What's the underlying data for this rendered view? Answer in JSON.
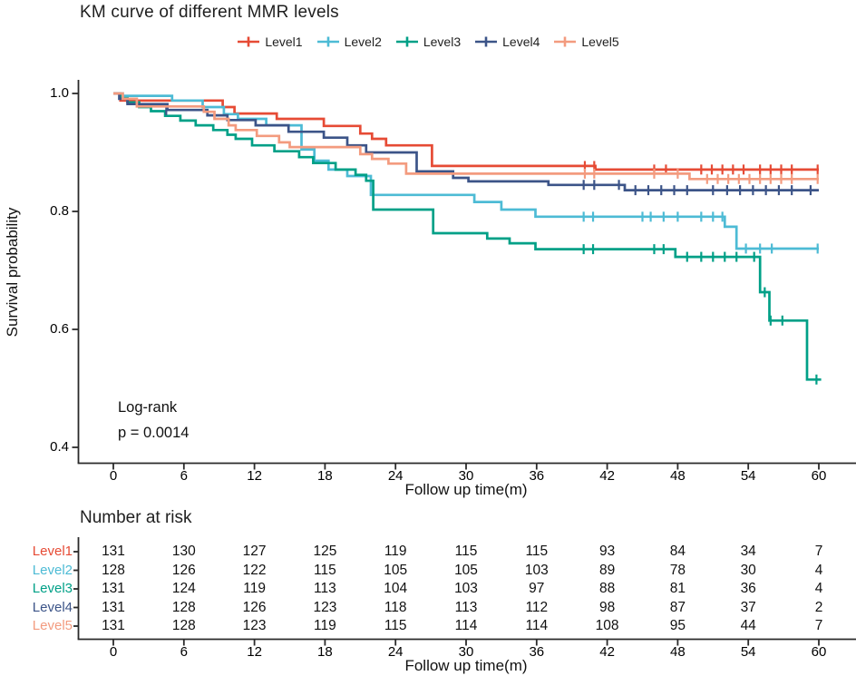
{
  "page_title": "KM curve of different MMR levels",
  "legend": {
    "items": [
      {
        "label": "Level1",
        "color": "#E64B35"
      },
      {
        "label": "Level2",
        "color": "#4DBBD5"
      },
      {
        "label": "Level3",
        "color": "#00A087"
      },
      {
        "label": "Level4",
        "color": "#3C5488"
      },
      {
        "label": "Level5",
        "color": "#F39B7F"
      }
    ]
  },
  "plot": {
    "y_axis_label": "Survival probability",
    "x_axis_label": "Follow up time(m)",
    "y_ticks": [
      "1.0",
      "0.8",
      "0.6",
      "0.4"
    ],
    "y_tick_values": [
      1.0,
      0.8,
      0.6,
      0.4
    ],
    "x_ticks": [
      0,
      6,
      12,
      18,
      24,
      30,
      36,
      42,
      48,
      54,
      60
    ],
    "annotation": {
      "line1": "Log-rank",
      "line2": "p = 0.0014"
    }
  },
  "risk_table": {
    "title": "Number at risk",
    "x_axis_label": "Follow up time(m)",
    "x_ticks": [
      0,
      6,
      12,
      18,
      24,
      30,
      36,
      42,
      48,
      54,
      60
    ],
    "rows": [
      {
        "label": "Level1",
        "color": "#E64B35",
        "counts": [
          131,
          130,
          127,
          125,
          119,
          115,
          115,
          93,
          84,
          34,
          7
        ]
      },
      {
        "label": "Level2",
        "color": "#4DBBD5",
        "counts": [
          128,
          126,
          122,
          115,
          105,
          105,
          103,
          89,
          78,
          30,
          4
        ]
      },
      {
        "label": "Level3",
        "color": "#00A087",
        "counts": [
          131,
          124,
          119,
          113,
          104,
          103,
          97,
          88,
          81,
          36,
          4
        ]
      },
      {
        "label": "Level4",
        "color": "#3C5488",
        "counts": [
          131,
          128,
          126,
          123,
          118,
          113,
          112,
          98,
          87,
          37,
          2
        ]
      },
      {
        "label": "Level5",
        "color": "#F39B7F",
        "counts": [
          131,
          128,
          123,
          119,
          115,
          114,
          114,
          108,
          95,
          44,
          7
        ]
      }
    ]
  },
  "chart_data": {
    "type": "line",
    "subtype": "kaplan-meier-step",
    "title": "KM curve of different MMR levels",
    "xlabel": "Follow up time(m)",
    "ylabel": "Survival probability",
    "xlim": [
      0,
      60
    ],
    "ylim": [
      0.4,
      1.0
    ],
    "x_ticks": [
      0,
      6,
      12,
      18,
      24,
      30,
      36,
      42,
      48,
      54,
      60
    ],
    "y_ticks": [
      1.0,
      0.8,
      0.6,
      0.4
    ],
    "grid": false,
    "legend_position": "top",
    "logrank_label": "Log-rank",
    "logrank_p": "p = 0.0014",
    "series": [
      {
        "name": "Level1",
        "color": "#E64B35",
        "points": [
          [
            0,
            1.0
          ],
          [
            0.6,
            0.988
          ],
          [
            9.3,
            0.977
          ],
          [
            10.3,
            0.966
          ],
          [
            13.9,
            0.957
          ],
          [
            17.9,
            0.945
          ],
          [
            21,
            0.932
          ],
          [
            22,
            0.923
          ],
          [
            23.2,
            0.912
          ],
          [
            27.1,
            0.877
          ],
          [
            41,
            0.871
          ],
          [
            60,
            0.871
          ]
        ],
        "censor_marks": [
          [
            40.1,
            0.877
          ],
          [
            40.9,
            0.877
          ],
          [
            46,
            0.871
          ],
          [
            47,
            0.871
          ],
          [
            50,
            0.871
          ],
          [
            50.9,
            0.871
          ],
          [
            51.8,
            0.871
          ],
          [
            52.7,
            0.871
          ],
          [
            53.6,
            0.871
          ],
          [
            55,
            0.871
          ],
          [
            55.9,
            0.871
          ],
          [
            56.8,
            0.871
          ],
          [
            57.7,
            0.871
          ],
          [
            59.9,
            0.871
          ]
        ]
      },
      {
        "name": "Level2",
        "color": "#4DBBD5",
        "points": [
          [
            0,
            1.0
          ],
          [
            0.8,
            0.996
          ],
          [
            5,
            0.988
          ],
          [
            7.6,
            0.977
          ],
          [
            9.4,
            0.965
          ],
          [
            10.6,
            0.957
          ],
          [
            13,
            0.946
          ],
          [
            16,
            0.905
          ],
          [
            17.1,
            0.886
          ],
          [
            18.3,
            0.871
          ],
          [
            19.9,
            0.86
          ],
          [
            21.9,
            0.828
          ],
          [
            30.7,
            0.816
          ],
          [
            33,
            0.803
          ],
          [
            35.9,
            0.791
          ],
          [
            52,
            0.774
          ],
          [
            53,
            0.737
          ],
          [
            60,
            0.737
          ]
        ],
        "censor_marks": [
          [
            40,
            0.791
          ],
          [
            40.8,
            0.791
          ],
          [
            45,
            0.791
          ],
          [
            45.7,
            0.791
          ],
          [
            46.8,
            0.791
          ],
          [
            48,
            0.791
          ],
          [
            50,
            0.791
          ],
          [
            51,
            0.791
          ],
          [
            51.8,
            0.791
          ],
          [
            53.8,
            0.737
          ],
          [
            55,
            0.737
          ],
          [
            56,
            0.737
          ],
          [
            59.9,
            0.737
          ]
        ]
      },
      {
        "name": "Level3",
        "color": "#00A087",
        "points": [
          [
            0,
            1.0
          ],
          [
            0.6,
            0.992
          ],
          [
            1.2,
            0.985
          ],
          [
            2.2,
            0.977
          ],
          [
            3.2,
            0.97
          ],
          [
            4.4,
            0.962
          ],
          [
            5.7,
            0.954
          ],
          [
            7,
            0.946
          ],
          [
            8.5,
            0.938
          ],
          [
            9.7,
            0.93
          ],
          [
            10.4,
            0.923
          ],
          [
            11.8,
            0.912
          ],
          [
            13.7,
            0.902
          ],
          [
            15.8,
            0.892
          ],
          [
            17,
            0.882
          ],
          [
            18.9,
            0.871
          ],
          [
            20.6,
            0.862
          ],
          [
            21.5,
            0.852
          ],
          [
            22.1,
            0.803
          ],
          [
            27.2,
            0.763
          ],
          [
            31.8,
            0.754
          ],
          [
            33.7,
            0.746
          ],
          [
            35.9,
            0.736
          ],
          [
            47.8,
            0.723
          ],
          [
            55,
            0.663
          ],
          [
            55.8,
            0.615
          ],
          [
            59,
            0.515
          ],
          [
            60.2,
            0.515
          ]
        ],
        "censor_marks": [
          [
            40,
            0.736
          ],
          [
            40.8,
            0.736
          ],
          [
            46,
            0.736
          ],
          [
            46.8,
            0.736
          ],
          [
            48.8,
            0.723
          ],
          [
            50,
            0.723
          ],
          [
            51,
            0.723
          ],
          [
            52,
            0.723
          ],
          [
            53,
            0.723
          ],
          [
            54.5,
            0.723
          ],
          [
            55.4,
            0.663
          ],
          [
            55.9,
            0.615
          ],
          [
            56.9,
            0.615
          ],
          [
            59.8,
            0.515
          ]
        ]
      },
      {
        "name": "Level4",
        "color": "#3C5488",
        "points": [
          [
            0,
            1.0
          ],
          [
            0.5,
            0.991
          ],
          [
            1.2,
            0.982
          ],
          [
            4.6,
            0.972
          ],
          [
            8,
            0.963
          ],
          [
            9.7,
            0.955
          ],
          [
            12.1,
            0.946
          ],
          [
            14.9,
            0.935
          ],
          [
            17.9,
            0.925
          ],
          [
            19.9,
            0.912
          ],
          [
            21.5,
            0.9
          ],
          [
            25.8,
            0.868
          ],
          [
            28.9,
            0.857
          ],
          [
            30.2,
            0.851
          ],
          [
            37,
            0.845
          ],
          [
            43.5,
            0.836
          ],
          [
            60,
            0.836
          ]
        ],
        "censor_marks": [
          [
            4.5,
            0.972
          ],
          [
            40,
            0.845
          ],
          [
            40.9,
            0.845
          ],
          [
            43,
            0.845
          ],
          [
            44.4,
            0.836
          ],
          [
            45.5,
            0.836
          ],
          [
            46.6,
            0.836
          ],
          [
            47.7,
            0.836
          ],
          [
            48.8,
            0.836
          ],
          [
            51,
            0.836
          ],
          [
            52.2,
            0.836
          ],
          [
            53.3,
            0.836
          ],
          [
            54.4,
            0.836
          ],
          [
            55.5,
            0.836
          ],
          [
            56.6,
            0.836
          ],
          [
            57.7,
            0.836
          ],
          [
            59.3,
            0.836
          ]
        ]
      },
      {
        "name": "Level5",
        "color": "#F39B7F",
        "points": [
          [
            0,
            1.0
          ],
          [
            0.8,
            0.991
          ],
          [
            2,
            0.978
          ],
          [
            7.7,
            0.969
          ],
          [
            8.6,
            0.957
          ],
          [
            9.8,
            0.946
          ],
          [
            10.4,
            0.938
          ],
          [
            12.2,
            0.928
          ],
          [
            14.1,
            0.917
          ],
          [
            15,
            0.909
          ],
          [
            21,
            0.897
          ],
          [
            22,
            0.889
          ],
          [
            23.4,
            0.881
          ],
          [
            24.9,
            0.864
          ],
          [
            49,
            0.855
          ],
          [
            60,
            0.855
          ]
        ],
        "censor_marks": [
          [
            40.1,
            0.864
          ],
          [
            40.9,
            0.864
          ],
          [
            46,
            0.864
          ],
          [
            48,
            0.864
          ],
          [
            50.5,
            0.855
          ],
          [
            51.4,
            0.855
          ],
          [
            52.3,
            0.855
          ],
          [
            53.2,
            0.855
          ],
          [
            54.1,
            0.855
          ],
          [
            55,
            0.855
          ],
          [
            55.9,
            0.855
          ],
          [
            56.8,
            0.855
          ],
          [
            57.7,
            0.855
          ],
          [
            59.9,
            0.855
          ]
        ]
      }
    ],
    "risk_table": {
      "title": "Number at risk",
      "times": [
        0,
        6,
        12,
        18,
        24,
        30,
        36,
        42,
        48,
        54,
        60
      ],
      "rows": [
        {
          "name": "Level1",
          "counts": [
            131,
            130,
            127,
            125,
            119,
            115,
            115,
            93,
            84,
            34,
            7
          ]
        },
        {
          "name": "Level2",
          "counts": [
            128,
            126,
            122,
            115,
            105,
            105,
            103,
            89,
            78,
            30,
            4
          ]
        },
        {
          "name": "Level3",
          "counts": [
            131,
            124,
            119,
            113,
            104,
            103,
            97,
            88,
            81,
            36,
            4
          ]
        },
        {
          "name": "Level4",
          "counts": [
            131,
            128,
            126,
            123,
            118,
            113,
            112,
            98,
            87,
            37,
            2
          ]
        },
        {
          "name": "Level5",
          "counts": [
            131,
            128,
            123,
            119,
            115,
            114,
            114,
            108,
            95,
            44,
            7
          ]
        }
      ]
    }
  }
}
